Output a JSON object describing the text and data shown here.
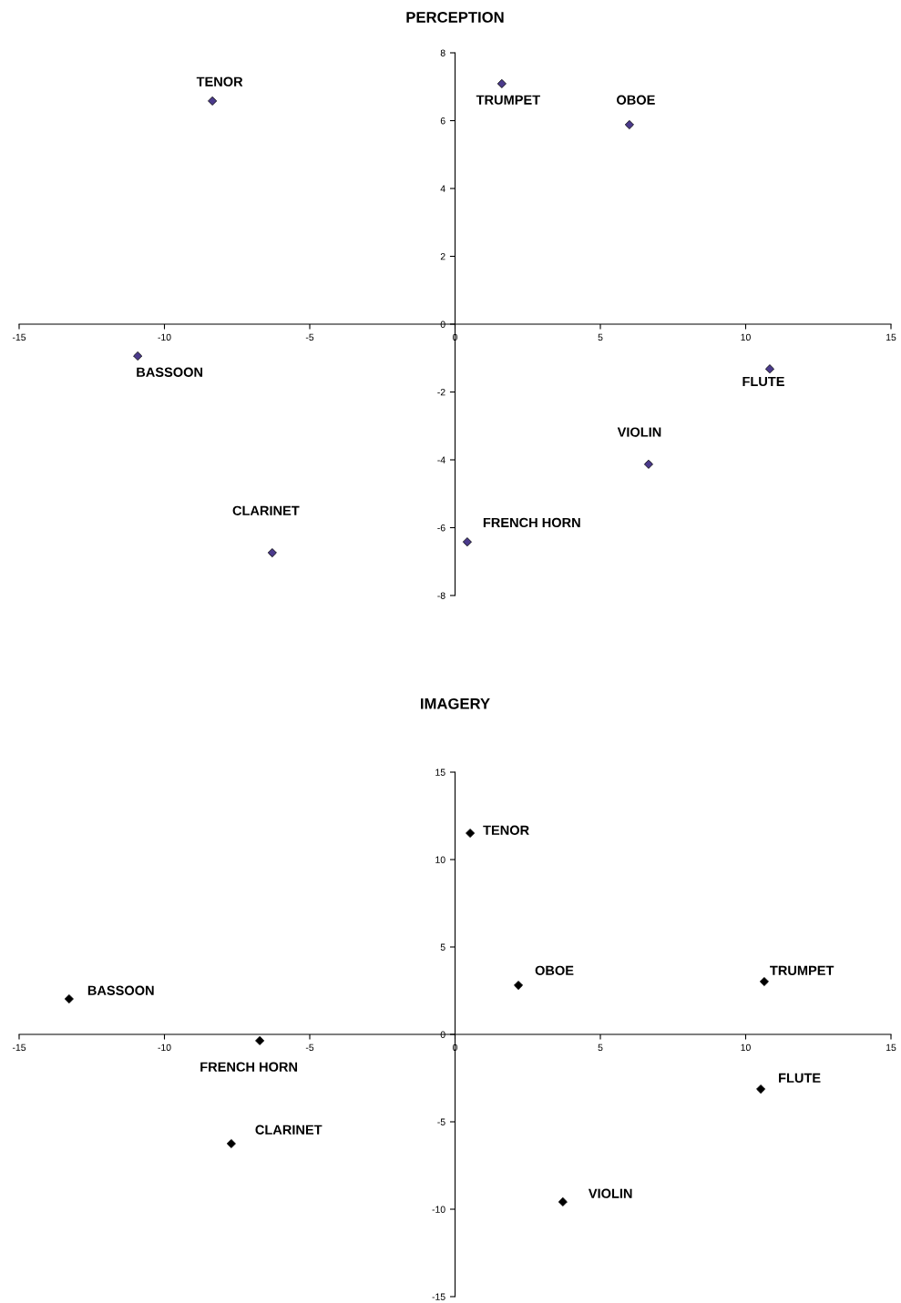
{
  "chart_data": [
    {
      "type": "scatter",
      "title": "PERCEPTION",
      "marker": "diamond",
      "xlim": [
        -15,
        15
      ],
      "xticks": [
        -15,
        -10,
        -5,
        0,
        5,
        10,
        15
      ],
      "ylim": [
        -8,
        8
      ],
      "yticks": [
        -8,
        -6,
        -4,
        -2,
        0,
        2,
        4,
        6,
        8
      ],
      "series": [
        {
          "color": "#4b3a8c",
          "x": [
            -8.35,
            1.61,
            6.0,
            -10.92,
            10.83,
            6.66,
            0.42,
            -6.29
          ],
          "values": [
            6.58,
            7.09,
            5.88,
            -0.94,
            -1.32,
            -4.13,
            -6.42,
            -6.74
          ]
        }
      ],
      "annotations": [
        {
          "text": "TENOR",
          "x": -8.35,
          "y": 6.58
        },
        {
          "text": "TRUMPET",
          "x": 1.61,
          "y": 7.09
        },
        {
          "text": "OBOE",
          "x": 6.0,
          "y": 5.88
        },
        {
          "text": "BASSOON",
          "x": -10.92,
          "y": -0.94
        },
        {
          "text": "FLUTE",
          "x": 10.83,
          "y": -1.32
        },
        {
          "text": "VIOLIN",
          "x": 6.66,
          "y": -4.13
        },
        {
          "text": "FRENCH HORN",
          "x": 0.42,
          "y": -6.42
        },
        {
          "text": "CLARINET",
          "x": -6.29,
          "y": -6.74
        }
      ]
    },
    {
      "type": "scatter",
      "title": "IMAGERY",
      "marker": "diamond",
      "xlim": [
        -15,
        15
      ],
      "xticks": [
        -15,
        -10,
        -5,
        0,
        5,
        10,
        15
      ],
      "ylim": [
        -15,
        15
      ],
      "yticks": [
        -15,
        -10,
        -5,
        0,
        5,
        10,
        15
      ],
      "series": [
        {
          "color": "#000000",
          "x": [
            0.52,
            2.18,
            10.64,
            -13.28,
            -6.72,
            10.52,
            -7.7,
            3.71
          ],
          "values": [
            11.51,
            2.81,
            3.02,
            2.03,
            -0.36,
            -3.13,
            -6.25,
            -9.58
          ]
        }
      ],
      "annotations": [
        {
          "text": "TENOR",
          "x": 0.52,
          "y": 11.51
        },
        {
          "text": "OBOE",
          "x": 2.18,
          "y": 2.81
        },
        {
          "text": "TRUMPET",
          "x": 10.64,
          "y": 3.02
        },
        {
          "text": "BASSOON",
          "x": -13.28,
          "y": 2.03
        },
        {
          "text": "FRENCH HORN",
          "x": -6.72,
          "y": -0.36
        },
        {
          "text": "FLUTE",
          "x": 10.52,
          "y": -3.13
        },
        {
          "text": "CLARINET",
          "x": -7.7,
          "y": -6.25
        },
        {
          "text": "VIOLIN",
          "x": 3.71,
          "y": -9.58
        }
      ]
    }
  ]
}
